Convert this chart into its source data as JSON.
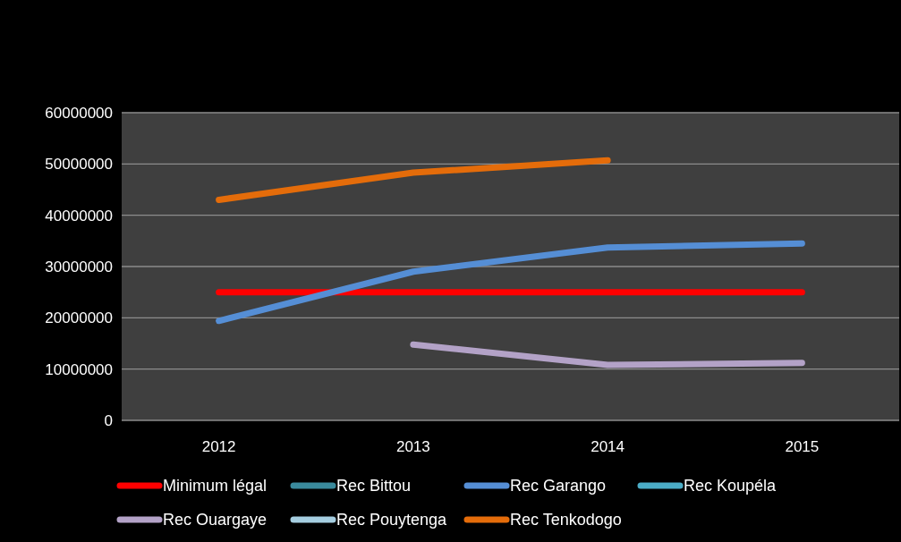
{
  "chart_data": {
    "type": "line",
    "categories": [
      "2012",
      "2013",
      "2014",
      "2015"
    ],
    "ylim": [
      0,
      60000000
    ],
    "yticks": [
      0,
      10000000,
      20000000,
      30000000,
      40000000,
      50000000,
      60000000
    ],
    "grid": "y",
    "legend": "bottom",
    "marker": "none",
    "line_style": "solid",
    "series": [
      {
        "name": "Minimum légal",
        "color": "#ff0000",
        "values": [
          25000000,
          25000000,
          25000000,
          25000000
        ]
      },
      {
        "name": "Rec Bittou",
        "color": "#3a8a9c",
        "values": [
          null,
          null,
          null,
          null
        ]
      },
      {
        "name": "Rec Garango",
        "color": "#558ed5",
        "values": [
          19400000,
          29000000,
          33700000,
          34500000
        ]
      },
      {
        "name": "Rec Koupéla",
        "color": "#4bacc6",
        "values": [
          null,
          null,
          null,
          null
        ]
      },
      {
        "name": "Rec Ouargaye",
        "color": "#b3a2c7",
        "values": [
          null,
          14800000,
          10800000,
          11200000
        ]
      },
      {
        "name": "Rec Pouytenga",
        "color": "#a5cde0",
        "values": [
          null,
          null,
          null,
          null
        ]
      },
      {
        "name": "Rec Tenkodogo",
        "color": "#e46c0a",
        "values": [
          43000000,
          48300000,
          50700000,
          null
        ]
      }
    ]
  }
}
